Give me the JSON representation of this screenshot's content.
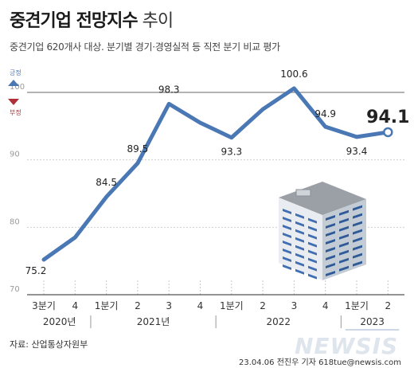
{
  "header": {
    "title_strong": "중견기업 전망지수",
    "title_light": "추이",
    "subtitle": "중견기업 620개사 대상. 분기별 경기·경영실적 등 직전 분기 비교 평가"
  },
  "legend": {
    "positive": "긍정",
    "negative": "부정"
  },
  "chart_data": {
    "type": "line",
    "title": "중견기업 전망지수 추이",
    "categories": [
      "3분기",
      "4",
      "1분기",
      "2",
      "3",
      "4",
      "1분기",
      "2",
      "3",
      "4",
      "1분기",
      "2"
    ],
    "years": [
      {
        "label": "2020년",
        "start": 0,
        "end": 1
      },
      {
        "label": "2021년",
        "start": 2,
        "end": 5
      },
      {
        "label": "2022",
        "start": 6,
        "end": 9
      },
      {
        "label": "2023",
        "start": 10,
        "end": 11
      }
    ],
    "values": [
      75.2,
      78.5,
      84.5,
      89.5,
      98.3,
      95.5,
      93.3,
      97.5,
      100.6,
      94.9,
      93.4,
      94.1
    ],
    "labels": [
      "75.2",
      "",
      "84.5",
      "89.5",
      "98.3",
      "",
      "93.3",
      "",
      "100.6",
      "94.9",
      "93.4",
      "94.1"
    ],
    "ylim": [
      70,
      100
    ],
    "yticks": [
      "70",
      "80",
      "90",
      "100"
    ],
    "reference": 100,
    "line_color": "#4a78b5",
    "grid": true
  },
  "footer": {
    "source": "자료: 산업통상자원부",
    "credit": "23.04.06 전진우 기자 618tue@newsis.com",
    "watermark": "NEWSIS"
  }
}
